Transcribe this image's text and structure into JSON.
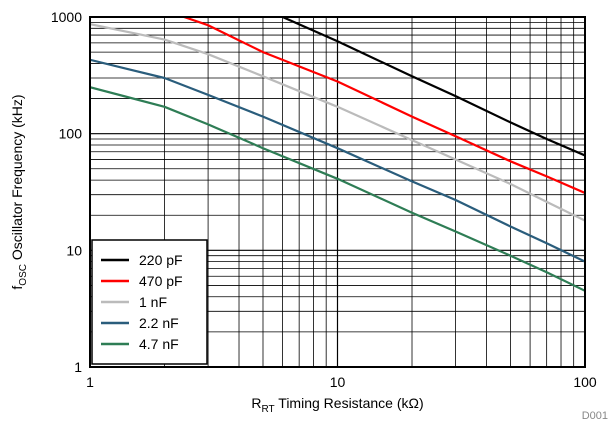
{
  "chart_data": {
    "type": "line",
    "xscale": "log",
    "yscale": "log",
    "xlim": [
      1,
      100
    ],
    "ylim": [
      1,
      1000
    ],
    "xlabel": {
      "main": "R",
      "sub": "RT",
      "rest": " Timing Resistance (kΩ)"
    },
    "ylabel": {
      "main": "f",
      "sub": "OSC",
      "rest": " Oscillator Frequency (kHz)"
    },
    "xticks": [
      "1",
      "10",
      "100"
    ],
    "yticks": [
      "1",
      "10",
      "100",
      "1000"
    ],
    "grid": true,
    "legend_position": "bottom-left",
    "figure_id": "D001",
    "series": [
      {
        "name": "220 pF",
        "color": "#000000",
        "x": [
          6.0,
          10,
          20,
          30,
          50,
          70,
          100
        ],
        "y": [
          1000,
          620,
          310,
          210,
          125,
          90,
          65
        ]
      },
      {
        "name": "470 pF",
        "color": "#ff0000",
        "x": [
          2.4,
          3,
          5,
          10,
          20,
          30,
          50,
          70,
          100
        ],
        "y": [
          1000,
          850,
          500,
          280,
          140,
          95,
          58,
          43,
          31
        ]
      },
      {
        "name": "1 nF",
        "color": "#bbbbbb",
        "x": [
          1,
          2,
          3,
          5,
          10,
          20,
          30,
          50,
          70,
          100
        ],
        "y": [
          870,
          640,
          480,
          310,
          170,
          88,
          60,
          37,
          26,
          18
        ]
      },
      {
        "name": "2.2 nF",
        "color": "#2a5d7c",
        "x": [
          1,
          2,
          3,
          5,
          10,
          20,
          30,
          50,
          70,
          100
        ],
        "y": [
          430,
          300,
          215,
          140,
          75,
          39,
          27,
          16,
          11.5,
          8
        ]
      },
      {
        "name": "4.7 nF",
        "color": "#2e7d55",
        "x": [
          1,
          2,
          3,
          5,
          10,
          20,
          30,
          50,
          70,
          100
        ],
        "y": [
          250,
          170,
          120,
          75,
          41,
          21,
          14.5,
          9,
          6.5,
          4.5
        ]
      }
    ]
  }
}
